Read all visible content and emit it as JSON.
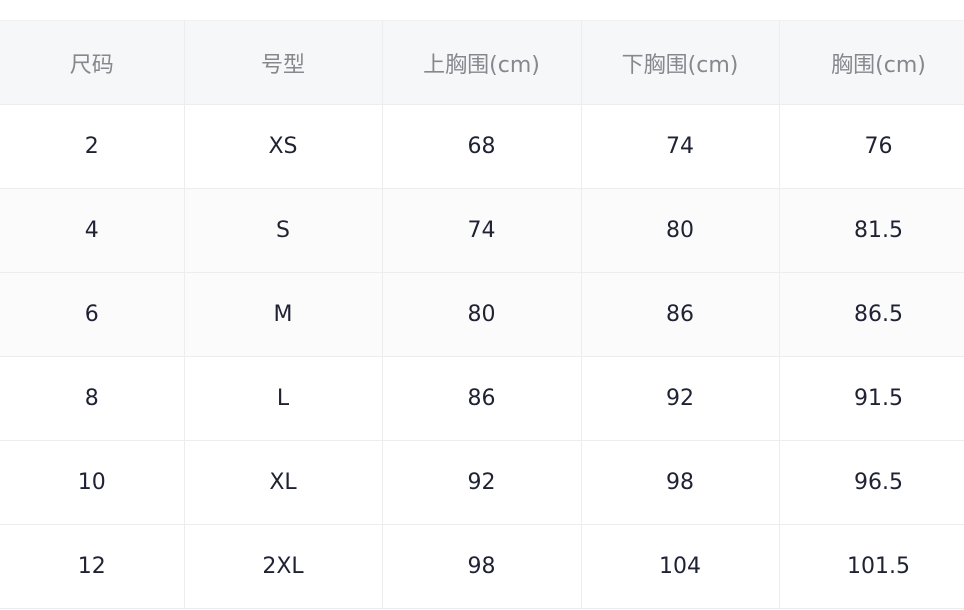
{
  "table": {
    "headers": [
      "尺码",
      "号型",
      "上胸围(cm)",
      "下胸围(cm)",
      "胸围(cm)"
    ],
    "rows": [
      [
        "2",
        "XS",
        "68",
        "74",
        "76"
      ],
      [
        "4",
        "S",
        "74",
        "80",
        "81.5"
      ],
      [
        "6",
        "M",
        "80",
        "86",
        "86.5"
      ],
      [
        "8",
        "L",
        "86",
        "92",
        "91.5"
      ],
      [
        "10",
        "XL",
        "92",
        "98",
        "96.5"
      ],
      [
        "12",
        "2XL",
        "98",
        "104",
        "101.5"
      ]
    ]
  }
}
